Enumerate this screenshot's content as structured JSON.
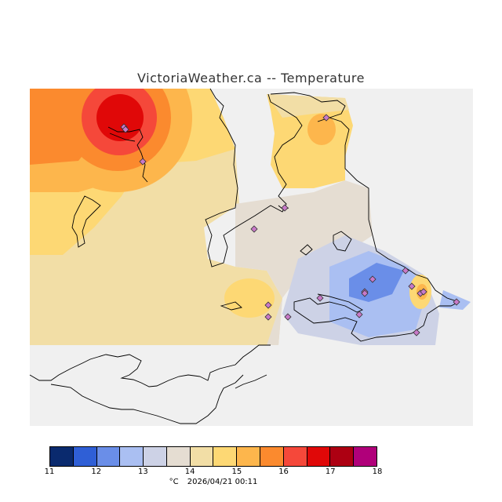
{
  "title": "VictoriaWeather.ca -- Temperature",
  "legend": {
    "unit": "°C",
    "timestamp": "2026/04/21 00:11",
    "ticks": [
      "11",
      "12",
      "13",
      "14",
      "15",
      "16",
      "17",
      "18"
    ],
    "colors": [
      "#0a2a6e",
      "#2f5fd6",
      "#6a8ee8",
      "#aabff2",
      "#cdd2e6",
      "#e5ddd2",
      "#f2dea6",
      "#fdd874",
      "#fdb64c",
      "#fb8a2e",
      "#f5483a",
      "#e00808",
      "#ad0012",
      "#b0007a"
    ]
  },
  "colors": {
    "land_background": "#f0f0f0",
    "outside_data": "#ffffff",
    "station_marker": "#c879c8"
  },
  "stations_count": 20
}
